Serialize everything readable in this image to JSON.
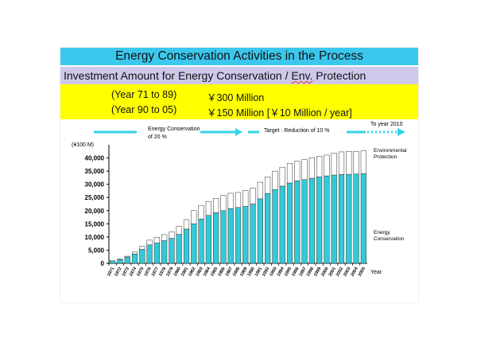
{
  "header": {
    "title": "Energy Conservation Activities in the Process",
    "subtitle_part1": "Investment Amount for Energy Conservation / ",
    "subtitle_part2": "Env.",
    "subtitle_part3": " Protection"
  },
  "investment": [
    {
      "period": "(Year 71 to 89)",
      "amount": "￥300 Million"
    },
    {
      "period": "(Year 90 to 05)",
      "amount": "￥150 Million [￥10 Million / year]"
    }
  ],
  "annotations": {
    "energy_conservation_line1": "Energy Conservation",
    "energy_conservation_line2": "of 20 %",
    "target": "Target : Reduction of 10 %",
    "to_year": "To year 2010",
    "env_protection_line1": "Environmental",
    "env_protection_line2": "Protection",
    "energy_cons_label_line1": "Energy",
    "energy_cons_label_line2": "Conservation"
  },
  "colors": {
    "title_bg": "#3cc8ee",
    "subtitle_bg": "#cfc8ec",
    "investment_bg": "#ffff00",
    "energy_bar": "#33c9d6",
    "env_bar": "#ffffff",
    "arrow": "#33d4e6"
  },
  "chart_data": {
    "type": "bar",
    "stacked": true,
    "ylabel": "(¥100 M)",
    "xlabel": "Year",
    "ylim": [
      0,
      45000
    ],
    "yticks": [
      0,
      5000,
      10000,
      15000,
      20000,
      25000,
      30000,
      35000,
      40000
    ],
    "ytick_labels": [
      "0",
      "5,000",
      "10,000",
      "15,000",
      "20,000",
      "25,000",
      "30,000",
      "35,000",
      "40,000"
    ],
    "grid": false,
    "categories": [
      "1971",
      "1972",
      "1973",
      "1974",
      "1975",
      "1976",
      "1977",
      "1978",
      "1979",
      "1980",
      "1981",
      "1982",
      "1983",
      "1984",
      "1985",
      "1986",
      "1987",
      "1988",
      "1989",
      "1990",
      "1991",
      "1992",
      "1993",
      "1994",
      "1995",
      "1996",
      "1997",
      "1998",
      "1999",
      "2000",
      "2001",
      "2002",
      "2003",
      "2004",
      "2005"
    ],
    "series": [
      {
        "name": "Energy Conservation",
        "values": [
          1000,
          1400,
          2400,
          3600,
          5300,
          7000,
          7700,
          8600,
          9500,
          11000,
          13000,
          15000,
          16800,
          18200,
          19200,
          20000,
          20800,
          21200,
          21600,
          22500,
          24500,
          26500,
          28000,
          29300,
          30500,
          31300,
          31800,
          32300,
          32800,
          33200,
          33500,
          33700,
          33800,
          33900,
          34000
        ]
      },
      {
        "name": "Environmental Protection",
        "values": [
          0,
          200,
          300,
          700,
          1200,
          1800,
          2200,
          2300,
          2400,
          3000,
          3600,
          5000,
          5200,
          5300,
          5500,
          5800,
          5800,
          5700,
          6000,
          6000,
          6300,
          6300,
          7000,
          7200,
          7500,
          7500,
          7600,
          7800,
          7800,
          7900,
          8400,
          8600,
          8700,
          8600,
          8700
        ]
      }
    ]
  }
}
